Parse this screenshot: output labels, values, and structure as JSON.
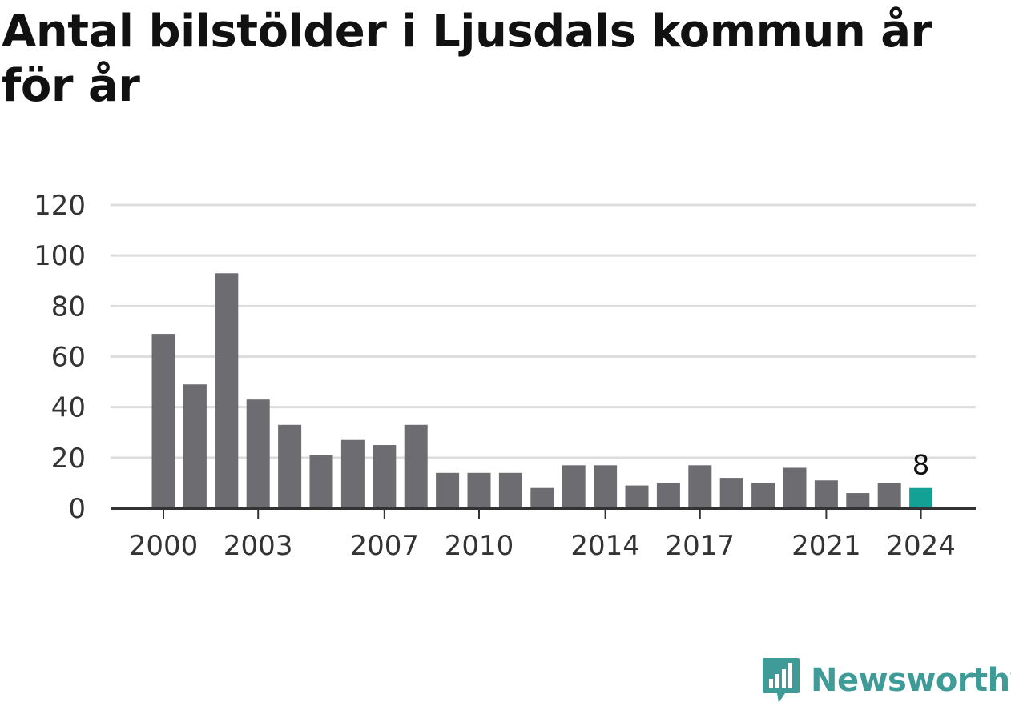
{
  "title": "Antal bilstölder i Ljusdals kommun år för år",
  "brand": {
    "name": "Newsworthy",
    "icon": "newsworthy-logo-icon",
    "color": "#3f9b98"
  },
  "colors": {
    "bar": "#6d6c71",
    "highlight": "#13a196",
    "grid": "#dddddd",
    "axis": "#333333"
  },
  "chart_data": {
    "type": "bar",
    "categories": [
      "2000",
      "2001",
      "2002",
      "2003",
      "2004",
      "2005",
      "2006",
      "2007",
      "2008",
      "2009",
      "2010",
      "2011",
      "2012",
      "2013",
      "2014",
      "2015",
      "2016",
      "2017",
      "2018",
      "2019",
      "2020",
      "2021",
      "2022",
      "2023",
      "2024"
    ],
    "values": [
      69,
      49,
      93,
      43,
      33,
      21,
      27,
      25,
      33,
      14,
      14,
      14,
      8,
      17,
      17,
      9,
      10,
      17,
      12,
      10,
      16,
      11,
      6,
      10,
      8
    ],
    "x_tick_labels": [
      "2000",
      "2003",
      "2007",
      "2010",
      "2014",
      "2017",
      "2021",
      "2024"
    ],
    "y_ticks": [
      "0",
      "20",
      "40",
      "60",
      "80",
      "100",
      "120"
    ],
    "ylim": [
      0,
      120
    ],
    "grid": true,
    "highlight_category": "2024",
    "highlight_label": "8",
    "title": "Antal bilstölder i Ljusdals kommun år för år",
    "xlabel": "",
    "ylabel": ""
  }
}
